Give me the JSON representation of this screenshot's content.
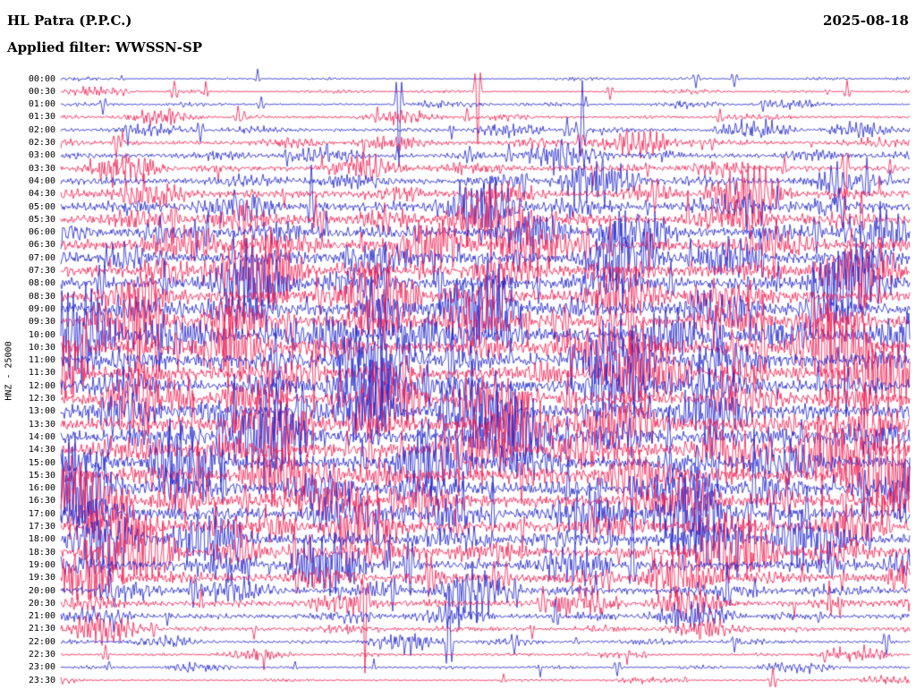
{
  "header": {
    "station": "HL Patra (P.P.C.)",
    "date": "2025-08-18",
    "filter": "Applied filter: WWSSN-SP"
  },
  "axis": {
    "left_label": "HNZ - 25000"
  },
  "chart_data": {
    "type": "line",
    "subtype": "helicorder-seismogram",
    "title": "HL Patra (P.P.C.)",
    "date": "2025-08-18",
    "filter": "WWSSN-SP",
    "channel": "HNZ",
    "scale": 25000,
    "minutes_per_row": 30,
    "background": "#ffffff",
    "text_color": "#000000",
    "trace_colors": {
      "even": "#1e22cc",
      "odd": "#f2194e"
    },
    "legend": "alternating blue/red traces, one row per 30 minutes, 00:00 to 23:30",
    "rows": [
      {
        "label": "00:00",
        "amp": 0.06
      },
      {
        "label": "00:30",
        "amp": 0.08
      },
      {
        "label": "01:00",
        "amp": 0.12
      },
      {
        "label": "01:30",
        "amp": 0.16
      },
      {
        "label": "02:00",
        "amp": 0.22
      },
      {
        "label": "02:30",
        "amp": 0.26
      },
      {
        "label": "03:00",
        "amp": 0.3
      },
      {
        "label": "03:30",
        "amp": 0.34
      },
      {
        "label": "04:00",
        "amp": 0.42
      },
      {
        "label": "04:30",
        "amp": 0.48
      },
      {
        "label": "05:00",
        "amp": 0.55
      },
      {
        "label": "05:30",
        "amp": 0.6
      },
      {
        "label": "06:00",
        "amp": 0.65
      },
      {
        "label": "06:30",
        "amp": 0.7
      },
      {
        "label": "07:00",
        "amp": 0.72
      },
      {
        "label": "07:30",
        "amp": 0.75
      },
      {
        "label": "08:00",
        "amp": 0.78
      },
      {
        "label": "08:30",
        "amp": 0.8
      },
      {
        "label": "09:00",
        "amp": 0.82
      },
      {
        "label": "09:30",
        "amp": 0.85
      },
      {
        "label": "10:00",
        "amp": 0.88
      },
      {
        "label": "10:30",
        "amp": 0.9
      },
      {
        "label": "11:00",
        "amp": 0.9
      },
      {
        "label": "11:30",
        "amp": 0.88
      },
      {
        "label": "12:00",
        "amp": 0.86
      },
      {
        "label": "12:30",
        "amp": 0.86
      },
      {
        "label": "13:00",
        "amp": 0.88
      },
      {
        "label": "13:30",
        "amp": 0.9
      },
      {
        "label": "14:00",
        "amp": 0.9
      },
      {
        "label": "14:30",
        "amp": 0.88
      },
      {
        "label": "15:00",
        "amp": 0.86
      },
      {
        "label": "15:30",
        "amp": 0.84
      },
      {
        "label": "16:00",
        "amp": 0.82
      },
      {
        "label": "16:30",
        "amp": 0.82
      },
      {
        "label": "17:00",
        "amp": 0.8
      },
      {
        "label": "17:30",
        "amp": 0.78
      },
      {
        "label": "18:00",
        "amp": 0.74
      },
      {
        "label": "18:30",
        "amp": 0.7
      },
      {
        "label": "19:00",
        "amp": 0.62
      },
      {
        "label": "19:30",
        "amp": 0.55
      },
      {
        "label": "20:00",
        "amp": 0.45
      },
      {
        "label": "20:30",
        "amp": 0.38
      },
      {
        "label": "21:00",
        "amp": 0.3
      },
      {
        "label": "21:30",
        "amp": 0.24
      },
      {
        "label": "22:00",
        "amp": 0.18
      },
      {
        "label": "22:30",
        "amp": 0.14
      },
      {
        "label": "23:00",
        "amp": 0.11
      },
      {
        "label": "23:30",
        "amp": 0.08
      }
    ]
  }
}
